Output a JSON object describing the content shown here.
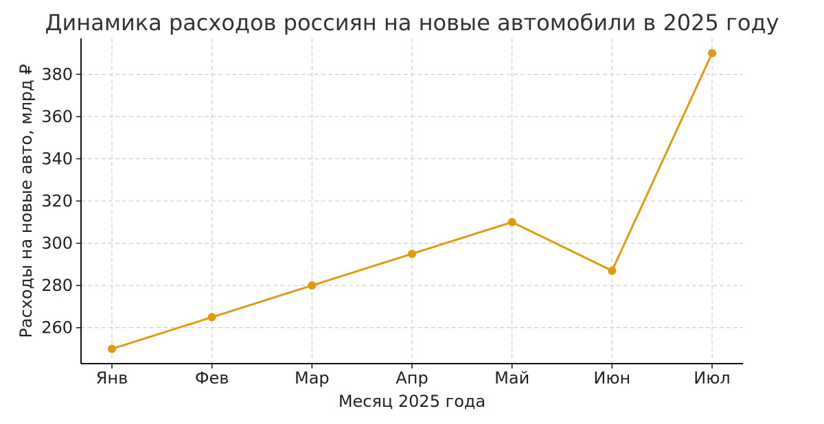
{
  "chart_data": {
    "type": "line",
    "title": "Динамика расходов россиян на новые автомобили в 2025 году",
    "xlabel": "Месяц 2025 года",
    "ylabel": "Расходы на новые авто, млрд ₽",
    "categories": [
      "Янв",
      "Фев",
      "Мар",
      "Апр",
      "Май",
      "Июн",
      "Июл"
    ],
    "series": [
      {
        "values": [
          250,
          265,
          280,
          295,
          310,
          287,
          390
        ]
      }
    ],
    "ylim": [
      243,
      397
    ],
    "yticks": [
      260,
      280,
      300,
      320,
      340,
      360,
      380
    ],
    "grid": true,
    "line_color": "#E09C0E"
  }
}
